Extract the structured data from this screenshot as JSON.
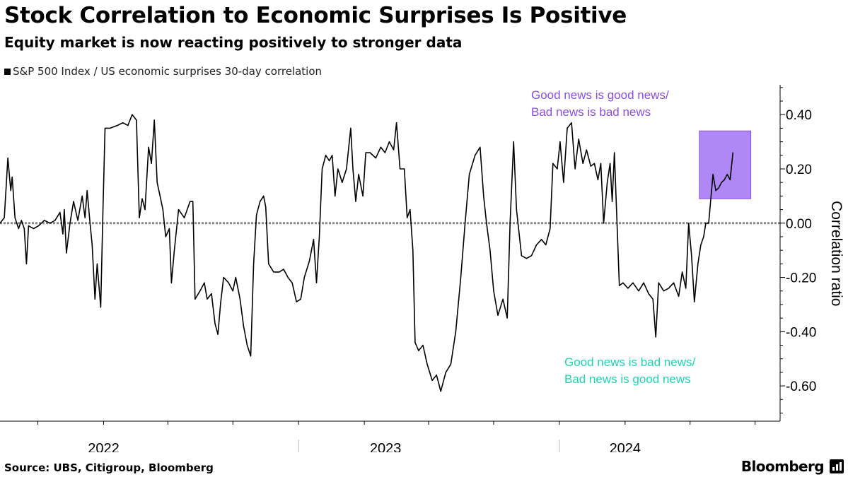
{
  "header": {
    "title": "Stock Correlation to Economic Surprises Is Positive",
    "subtitle": "Equity market is now reacting positively to stronger data"
  },
  "footer": {
    "source": "Source: UBS, Citigroup, Bloomberg",
    "brand": "Bloomberg"
  },
  "chart_data": {
    "type": "line",
    "title": "Stock Correlation to Economic Surprises Is Positive",
    "subtitle": "Equity market is now reacting positively to stronger data",
    "ylabel": "Correlation ratio",
    "xlabel": "",
    "ylim": [
      -0.73,
      0.51
    ],
    "y_ticks": [
      0.4,
      0.2,
      0.0,
      -0.2,
      -0.4,
      -0.6
    ],
    "y_tick_labels": [
      "0.40",
      "0.20",
      "0.00",
      "-0.20",
      "-0.40",
      "-0.60"
    ],
    "x_range": [
      "2021-08-09",
      "2024-08-05"
    ],
    "x_year_labels": [
      {
        "label": "2022",
        "center": "2022-01-01"
      },
      {
        "label": "2023",
        "center": "2023-01-01"
      },
      {
        "label": "2024",
        "center": "2024-01-01"
      }
    ],
    "x_year_separators": [
      "2022-10-01",
      "2023-10-01"
    ],
    "grid": false,
    "legend_position": "top-left",
    "colors": {
      "series": "#000000",
      "highlight": "#b088f5",
      "good_news": "#8a4ee6",
      "bad_news": "#1ed4b4"
    },
    "series": [
      {
        "name": "S&P 500 Index / US economic surprises 30-day correlation",
        "points": [
          [
            "2021-08-09",
            0.0
          ],
          [
            "2021-08-15",
            0.02
          ],
          [
            "2021-08-20",
            0.24
          ],
          [
            "2021-08-24",
            0.12
          ],
          [
            "2021-08-26",
            0.17
          ],
          [
            "2021-08-30",
            0.02
          ],
          [
            "2021-09-04",
            -0.02
          ],
          [
            "2021-09-08",
            0.01
          ],
          [
            "2021-09-12",
            -0.02
          ],
          [
            "2021-09-15",
            -0.15
          ],
          [
            "2021-09-18",
            -0.01
          ],
          [
            "2021-09-25",
            -0.02
          ],
          [
            "2021-10-02",
            -0.01
          ],
          [
            "2021-10-10",
            0.01
          ],
          [
            "2021-10-18",
            0.0
          ],
          [
            "2021-10-25",
            0.01
          ],
          [
            "2021-11-01",
            0.04
          ],
          [
            "2021-11-05",
            -0.04
          ],
          [
            "2021-11-07",
            0.05
          ],
          [
            "2021-11-10",
            -0.11
          ],
          [
            "2021-11-15",
            0.0
          ],
          [
            "2021-11-20",
            0.08
          ],
          [
            "2021-11-26",
            0.01
          ],
          [
            "2021-12-02",
            0.1
          ],
          [
            "2021-12-06",
            0.02
          ],
          [
            "2021-12-09",
            0.12
          ],
          [
            "2021-12-13",
            0.0
          ],
          [
            "2021-12-16",
            -0.08
          ],
          [
            "2021-12-20",
            -0.28
          ],
          [
            "2021-12-23",
            -0.15
          ],
          [
            "2021-12-28",
            -0.31
          ],
          [
            "2021-12-31",
            0.04
          ],
          [
            "2022-01-03",
            0.35
          ],
          [
            "2022-01-10",
            0.35
          ],
          [
            "2022-01-20",
            0.36
          ],
          [
            "2022-01-28",
            0.37
          ],
          [
            "2022-02-04",
            0.36
          ],
          [
            "2022-02-10",
            0.4
          ],
          [
            "2022-02-16",
            0.38
          ],
          [
            "2022-02-20",
            0.02
          ],
          [
            "2022-02-24",
            0.09
          ],
          [
            "2022-02-28",
            0.05
          ],
          [
            "2022-03-05",
            0.28
          ],
          [
            "2022-03-09",
            0.22
          ],
          [
            "2022-03-13",
            0.38
          ],
          [
            "2022-03-17",
            0.15
          ],
          [
            "2022-03-21",
            0.1
          ],
          [
            "2022-03-25",
            0.05
          ],
          [
            "2022-03-29",
            -0.05
          ],
          [
            "2022-04-03",
            -0.02
          ],
          [
            "2022-04-06",
            -0.22
          ],
          [
            "2022-04-10",
            -0.1
          ],
          [
            "2022-04-16",
            0.05
          ],
          [
            "2022-04-24",
            0.02
          ],
          [
            "2022-05-02",
            0.08
          ],
          [
            "2022-05-06",
            0.08
          ],
          [
            "2022-05-09",
            -0.28
          ],
          [
            "2022-05-16",
            -0.25
          ],
          [
            "2022-05-22",
            -0.22
          ],
          [
            "2022-05-26",
            -0.28
          ],
          [
            "2022-06-01",
            -0.26
          ],
          [
            "2022-06-06",
            -0.37
          ],
          [
            "2022-06-10",
            -0.41
          ],
          [
            "2022-06-14",
            -0.29
          ],
          [
            "2022-06-18",
            -0.2
          ],
          [
            "2022-06-25",
            -0.22
          ],
          [
            "2022-07-01",
            -0.25
          ],
          [
            "2022-07-05",
            -0.2
          ],
          [
            "2022-07-11",
            -0.28
          ],
          [
            "2022-07-16",
            -0.38
          ],
          [
            "2022-07-21",
            -0.45
          ],
          [
            "2022-07-26",
            -0.49
          ],
          [
            "2022-07-30",
            -0.15
          ],
          [
            "2022-08-03",
            0.03
          ],
          [
            "2022-08-08",
            0.08
          ],
          [
            "2022-08-13",
            0.1
          ],
          [
            "2022-08-16",
            0.06
          ],
          [
            "2022-08-20",
            -0.15
          ],
          [
            "2022-08-27",
            -0.18
          ],
          [
            "2022-09-04",
            -0.18
          ],
          [
            "2022-09-10",
            -0.17
          ],
          [
            "2022-09-16",
            -0.2
          ],
          [
            "2022-09-22",
            -0.22
          ],
          [
            "2022-09-28",
            -0.29
          ],
          [
            "2022-10-04",
            -0.28
          ],
          [
            "2022-10-09",
            -0.2
          ],
          [
            "2022-10-16",
            -0.14
          ],
          [
            "2022-10-22",
            -0.06
          ],
          [
            "2022-10-26",
            -0.22
          ],
          [
            "2022-10-30",
            -0.05
          ],
          [
            "2022-11-03",
            0.2
          ],
          [
            "2022-11-08",
            0.25
          ],
          [
            "2022-11-13",
            0.23
          ],
          [
            "2022-11-17",
            0.25
          ],
          [
            "2022-11-21",
            0.1
          ],
          [
            "2022-11-25",
            0.2
          ],
          [
            "2022-12-01",
            0.15
          ],
          [
            "2022-12-07",
            0.2
          ],
          [
            "2022-12-13",
            0.35
          ],
          [
            "2022-12-16",
            0.2
          ],
          [
            "2022-12-20",
            0.08
          ],
          [
            "2022-12-24",
            0.18
          ],
          [
            "2022-12-30",
            0.1
          ],
          [
            "2023-01-03",
            0.26
          ],
          [
            "2023-01-09",
            0.26
          ],
          [
            "2023-01-17",
            0.24
          ],
          [
            "2023-01-24",
            0.28
          ],
          [
            "2023-01-30",
            0.26
          ],
          [
            "2023-02-05",
            0.3
          ],
          [
            "2023-02-11",
            0.27
          ],
          [
            "2023-02-15",
            0.37
          ],
          [
            "2023-02-20",
            0.2
          ],
          [
            "2023-02-26",
            0.2
          ],
          [
            "2023-03-02",
            0.02
          ],
          [
            "2023-03-06",
            0.05
          ],
          [
            "2023-03-10",
            -0.1
          ],
          [
            "2023-03-13",
            -0.44
          ],
          [
            "2023-03-18",
            -0.47
          ],
          [
            "2023-03-24",
            -0.45
          ],
          [
            "2023-03-30",
            -0.52
          ],
          [
            "2023-04-06",
            -0.58
          ],
          [
            "2023-04-12",
            -0.56
          ],
          [
            "2023-04-18",
            -0.62
          ],
          [
            "2023-04-25",
            -0.55
          ],
          [
            "2023-05-02",
            -0.52
          ],
          [
            "2023-05-09",
            -0.4
          ],
          [
            "2023-05-16",
            -0.2
          ],
          [
            "2023-05-22",
            0.0
          ],
          [
            "2023-05-28",
            0.18
          ],
          [
            "2023-06-05",
            0.25
          ],
          [
            "2023-06-12",
            0.28
          ],
          [
            "2023-06-17",
            0.1
          ],
          [
            "2023-06-21",
            0.0
          ],
          [
            "2023-06-26",
            -0.1
          ],
          [
            "2023-07-01",
            -0.25
          ],
          [
            "2023-07-07",
            -0.34
          ],
          [
            "2023-07-14",
            -0.28
          ],
          [
            "2023-07-20",
            -0.35
          ],
          [
            "2023-07-24",
            0.0
          ],
          [
            "2023-07-29",
            0.3
          ],
          [
            "2023-08-02",
            0.05
          ],
          [
            "2023-08-09",
            -0.12
          ],
          [
            "2023-08-16",
            -0.13
          ],
          [
            "2023-08-23",
            -0.12
          ],
          [
            "2023-08-30",
            -0.08
          ],
          [
            "2023-09-06",
            -0.06
          ],
          [
            "2023-09-12",
            -0.08
          ],
          [
            "2023-09-18",
            -0.02
          ],
          [
            "2023-09-22",
            0.22
          ],
          [
            "2023-09-28",
            0.2
          ],
          [
            "2023-10-02",
            0.3
          ],
          [
            "2023-10-07",
            0.15
          ],
          [
            "2023-10-12",
            0.35
          ],
          [
            "2023-10-18",
            0.37
          ],
          [
            "2023-10-23",
            0.2
          ],
          [
            "2023-10-28",
            0.31
          ],
          [
            "2023-11-03",
            0.22
          ],
          [
            "2023-11-08",
            0.27
          ],
          [
            "2023-11-14",
            0.21
          ],
          [
            "2023-11-19",
            0.22
          ],
          [
            "2023-11-24",
            0.16
          ],
          [
            "2023-11-28",
            0.22
          ],
          [
            "2023-12-02",
            0.0
          ],
          [
            "2023-12-07",
            0.15
          ],
          [
            "2023-12-11",
            0.22
          ],
          [
            "2023-12-14",
            0.08
          ],
          [
            "2023-12-17",
            0.26
          ],
          [
            "2023-12-20",
            0.05
          ],
          [
            "2023-12-24",
            -0.23
          ],
          [
            "2023-12-29",
            -0.22
          ],
          [
            "2024-01-05",
            -0.24
          ],
          [
            "2024-01-12",
            -0.22
          ],
          [
            "2024-01-20",
            -0.25
          ],
          [
            "2024-01-27",
            -0.22
          ],
          [
            "2024-02-03",
            -0.26
          ],
          [
            "2024-02-09",
            -0.28
          ],
          [
            "2024-02-13",
            -0.42
          ],
          [
            "2024-02-17",
            -0.22
          ],
          [
            "2024-02-24",
            -0.25
          ],
          [
            "2024-03-02",
            -0.24
          ],
          [
            "2024-03-09",
            -0.22
          ],
          [
            "2024-03-16",
            -0.27
          ],
          [
            "2024-03-21",
            -0.18
          ],
          [
            "2024-03-26",
            -0.24
          ],
          [
            "2024-03-30",
            0.0
          ],
          [
            "2024-04-03",
            -0.12
          ],
          [
            "2024-04-07",
            -0.29
          ],
          [
            "2024-04-12",
            -0.15
          ],
          [
            "2024-04-16",
            -0.08
          ],
          [
            "2024-04-20",
            -0.05
          ],
          [
            "2024-04-23",
            0.0
          ],
          [
            "2024-04-27",
            0.0
          ],
          [
            "2024-05-03",
            0.18
          ],
          [
            "2024-05-07",
            0.12
          ],
          [
            "2024-05-11",
            0.13
          ],
          [
            "2024-05-15",
            0.15
          ],
          [
            "2024-05-19",
            0.16
          ],
          [
            "2024-05-23",
            0.18
          ],
          [
            "2024-05-27",
            0.16
          ],
          [
            "2024-05-31",
            0.26
          ]
        ]
      }
    ],
    "annotations": [
      {
        "name": "good-news-is-good",
        "lines": [
          "Good news is good news/",
          "Bad news is bad news"
        ]
      },
      {
        "name": "good-news-is-bad",
        "lines": [
          "Good news is bad news/",
          "Bad news is good news"
        ]
      }
    ],
    "highlight_box": {
      "x_from": "2024-04-14",
      "x_to": "2024-06-25",
      "y_from": 0.09,
      "y_to": 0.34
    }
  }
}
